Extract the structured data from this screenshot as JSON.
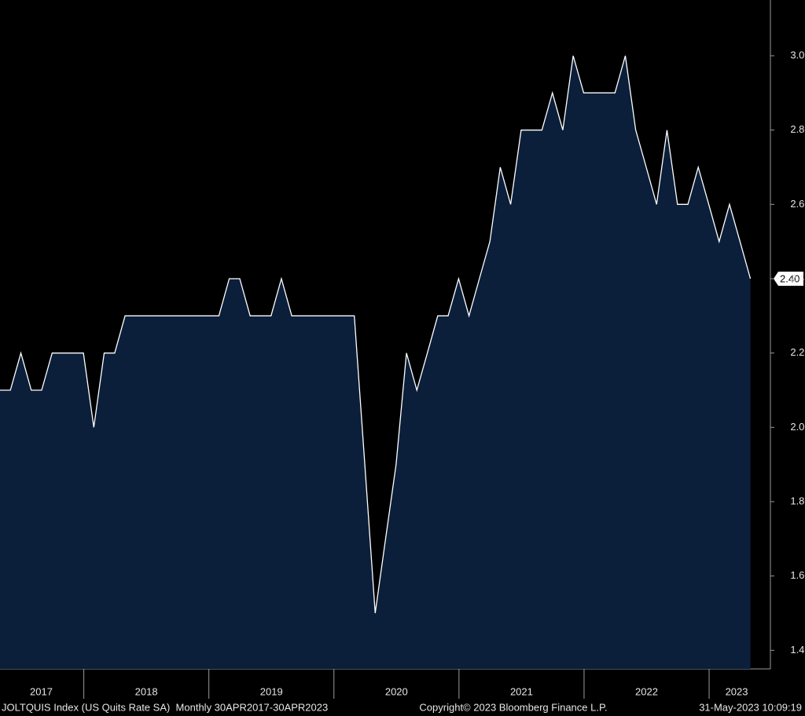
{
  "chart_data": {
    "type": "area",
    "series": [
      {
        "name": "JOLTQUIS Index",
        "color": "#ffffff",
        "fill": "#0b1f3b",
        "x": [
          2017.25,
          2017.333,
          2017.417,
          2017.5,
          2017.583,
          2017.667,
          2017.75,
          2017.833,
          2017.917,
          2018.0,
          2018.083,
          2018.167,
          2018.25,
          2018.333,
          2018.417,
          2018.5,
          2018.583,
          2018.667,
          2018.75,
          2018.833,
          2018.917,
          2019.0,
          2019.083,
          2019.167,
          2019.25,
          2019.333,
          2019.417,
          2019.5,
          2019.583,
          2019.667,
          2019.75,
          2019.833,
          2019.917,
          2020.0,
          2020.083,
          2020.167,
          2020.25,
          2020.333,
          2020.417,
          2020.5,
          2020.583,
          2020.667,
          2020.75,
          2020.833,
          2020.917,
          2021.0,
          2021.083,
          2021.167,
          2021.25,
          2021.333,
          2021.417,
          2021.5,
          2021.583,
          2021.667,
          2021.75,
          2021.833,
          2021.917,
          2022.0,
          2022.083,
          2022.167,
          2022.25,
          2022.333,
          2022.417,
          2022.5,
          2022.583,
          2022.667,
          2022.75,
          2022.833,
          2022.917,
          2023.0,
          2023.083,
          2023.167,
          2023.25
        ],
        "values": [
          2.1,
          2.1,
          2.2,
          2.1,
          2.1,
          2.2,
          2.2,
          2.2,
          2.2,
          2.0,
          2.2,
          2.2,
          2.3,
          2.3,
          2.3,
          2.3,
          2.3,
          2.3,
          2.3,
          2.3,
          2.3,
          2.3,
          2.4,
          2.4,
          2.3,
          2.3,
          2.3,
          2.4,
          2.3,
          2.3,
          2.3,
          2.3,
          2.3,
          2.3,
          2.3,
          1.9,
          1.5,
          1.7,
          1.9,
          2.2,
          2.1,
          2.2,
          2.3,
          2.3,
          2.4,
          2.3,
          2.4,
          2.5,
          2.7,
          2.6,
          2.8,
          2.8,
          2.8,
          2.9,
          2.8,
          3.0,
          2.9,
          2.9,
          2.9,
          2.9,
          3.0,
          2.8,
          2.7,
          2.6,
          2.8,
          2.6,
          2.6,
          2.7,
          2.6,
          2.5,
          2.6,
          2.5,
          2.4
        ]
      }
    ],
    "last_value_label": "2.40",
    "xlim": [
      2017.25,
      2023.41
    ],
    "ylim": [
      1.35,
      3.15
    ],
    "yticks": [
      {
        "value": 1.4,
        "label": "1.40"
      },
      {
        "value": 1.6,
        "label": "1.60"
      },
      {
        "value": 1.8,
        "label": "1.80"
      },
      {
        "value": 2.0,
        "label": "2.00"
      },
      {
        "value": 2.2,
        "label": "2.20"
      },
      {
        "value": 2.4,
        "label": "2.40"
      },
      {
        "value": 2.6,
        "label": "2.60"
      },
      {
        "value": 2.8,
        "label": "2.80"
      },
      {
        "value": 3.0,
        "label": "3.00"
      }
    ],
    "xticks": [
      {
        "value": 2017.58,
        "label": "2017"
      },
      {
        "value": 2018.42,
        "label": "2018"
      },
      {
        "value": 2019.42,
        "label": "2019"
      },
      {
        "value": 2020.42,
        "label": "2020"
      },
      {
        "value": 2021.42,
        "label": "2021"
      },
      {
        "value": 2022.42,
        "label": "2022"
      },
      {
        "value": 2023.14,
        "label": "2023"
      }
    ],
    "xticks_minor": [
      2017.92,
      2018.92,
      2019.92,
      2020.92,
      2021.92,
      2022.92
    ],
    "footer": {
      "source": "JOLTQUIS Index (US Quits Rate SA)  Monthly 30APR2017-30APR2023",
      "copyright": "Copyright© 2023 Bloomberg Finance L.P.",
      "timestamp": "31-May-2023 10:09:19"
    }
  }
}
